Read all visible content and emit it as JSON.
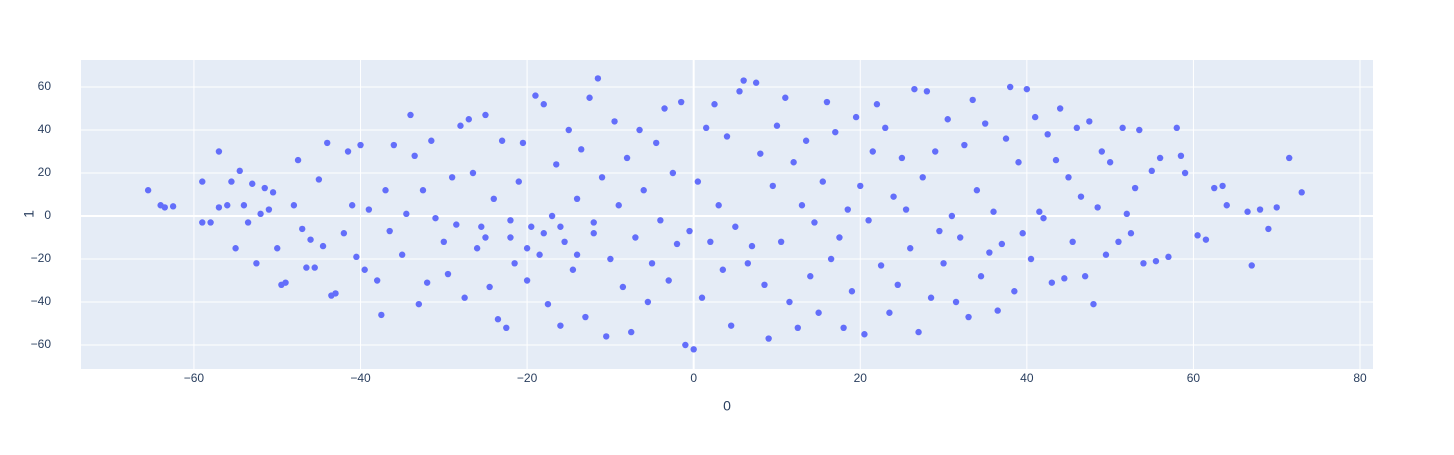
{
  "chart_data": {
    "type": "scatter",
    "x_label": "0",
    "y_label": "1",
    "color": "#636efa",
    "grid": true,
    "zeroline": true,
    "xlim": [
      -73.56,
      81.56
    ],
    "ylim": [
      -71.16,
      72.56
    ],
    "xticks": [
      {
        "value": -60,
        "label": "−60"
      },
      {
        "value": -40,
        "label": "−40"
      },
      {
        "value": -20,
        "label": "−20"
      },
      0,
      20,
      40,
      60,
      80
    ],
    "yticks": [
      {
        "value": -60,
        "label": "−60"
      },
      {
        "value": -40,
        "label": "−40"
      },
      {
        "value": -20,
        "label": "−20"
      },
      0,
      20,
      40,
      60
    ],
    "x": [
      -65.5,
      -64,
      -63.5,
      -62.5,
      -59,
      -59,
      -58,
      -57,
      -57,
      -56,
      -55.5,
      -55,
      -54.5,
      -54,
      -53.5,
      -53,
      -52.5,
      -52,
      -51.5,
      -51,
      -50.5,
      -50,
      -49.5,
      -49,
      -48,
      -47.5,
      -47,
      -46.5,
      -46,
      -45.5,
      -45,
      -44.5,
      -44,
      -43.5,
      -43,
      -42,
      -41.5,
      -41,
      -40.5,
      -40,
      -39.5,
      -39,
      -38,
      -37.5,
      -37,
      -36.5,
      -36,
      -35,
      -34.5,
      -34,
      -33.5,
      -33,
      -32.5,
      -32,
      -31.5,
      -31,
      -30,
      -29.5,
      -29,
      -28.5,
      -28,
      -27.5,
      -27,
      -26.5,
      -26,
      -25.5,
      -25,
      -24.5,
      -24,
      -23.5,
      -23,
      -22.5,
      -22,
      -21.5,
      -21,
      -20.5,
      -20,
      -19.5,
      -19,
      -18.5,
      -18,
      -17.5,
      -17,
      -16.5,
      -16,
      -15.5,
      -15,
      -14.5,
      -14,
      -13.5,
      -13,
      -12.5,
      -12,
      -11.5,
      -11,
      -10.5,
      -10,
      -9.5,
      -9,
      -8.5,
      -8,
      -7.5,
      -7,
      -6.5,
      -6,
      -5.5,
      -5,
      -4.5,
      -4,
      -3.5,
      -3,
      -2.5,
      -2,
      -1.5,
      -1,
      -0.5,
      0,
      0.5,
      1,
      1.5,
      2,
      2.5,
      3,
      3.5,
      4,
      4.5,
      5,
      5.5,
      6,
      6.5,
      7,
      7.5,
      8,
      8.5,
      9,
      9.5,
      10,
      10.5,
      11,
      11.5,
      12,
      12.5,
      13,
      13.5,
      14,
      14.5,
      15,
      15.5,
      16,
      16.5,
      17,
      17.5,
      18,
      18.5,
      19,
      19.5,
      20,
      20.5,
      21,
      21.5,
      22,
      22.5,
      23,
      23.5,
      24,
      24.5,
      25,
      25.5,
      26,
      26.5,
      27,
      27.5,
      28,
      28.5,
      29,
      29.5,
      30,
      30.5,
      31,
      31.5,
      32,
      32.5,
      33,
      33.5,
      34,
      34.5,
      35,
      35.5,
      36,
      36.5,
      37,
      37.5,
      38,
      38.5,
      39,
      39.5,
      40,
      40.5,
      41,
      41.5,
      42,
      42.5,
      43,
      43.5,
      44,
      44.5,
      45,
      45.5,
      46,
      46.5,
      47,
      47.5,
      48,
      48.5,
      49,
      49.5,
      50,
      51,
      51.5,
      52,
      52.5,
      53,
      53.5,
      54,
      55,
      55.5,
      56,
      57,
      58,
      58.5,
      59,
      60.5,
      61.5,
      62.5,
      63.5,
      64,
      66.5,
      67,
      68,
      69,
      70,
      71.5,
      73,
      -18,
      -20,
      -16,
      -22,
      -14,
      -12,
      -25
    ],
    "y": [
      12,
      5,
      4,
      4.5,
      16,
      -3,
      -3,
      30,
      4,
      5,
      16,
      -15,
      21,
      5,
      -3,
      15,
      -22,
      1,
      13,
      3,
      11,
      -15,
      -32,
      -31,
      5,
      26,
      -6,
      -24,
      -11,
      -24,
      17,
      -14,
      34,
      -37,
      -36,
      -8,
      30,
      5,
      -19,
      33,
      -25,
      3,
      -30,
      -46,
      12,
      -7,
      33,
      -18,
      1,
      47,
      28,
      -41,
      12,
      -31,
      35,
      -1,
      -12,
      -27,
      18,
      -4,
      42,
      -38,
      45,
      20,
      -15,
      -5,
      47,
      -33,
      8,
      -48,
      35,
      -52,
      -10,
      -22,
      16,
      34,
      -30,
      -5,
      56,
      -18,
      52,
      -41,
      0,
      24,
      -51,
      -12,
      40,
      -25,
      8,
      31,
      -47,
      55,
      -3,
      64,
      18,
      -56,
      -20,
      44,
      5,
      -33,
      27,
      -54,
      -10,
      40,
      12,
      -40,
      -22,
      34,
      -2,
      50,
      -30,
      20,
      -13,
      53,
      -60,
      -7,
      -62,
      16,
      -38,
      41,
      -12,
      52,
      5,
      -25,
      37,
      -51,
      -5,
      58,
      63,
      -22,
      -14,
      62,
      29,
      -32,
      -57,
      14,
      42,
      -12,
      55,
      -40,
      25,
      -52,
      5,
      35,
      -28,
      -3,
      -45,
      16,
      53,
      -20,
      39,
      -10,
      -52,
      3,
      -35,
      46,
      14,
      -55,
      -2,
      30,
      52,
      -23,
      41,
      -45,
      9,
      -32,
      27,
      3,
      -15,
      59,
      -54,
      18,
      58,
      -38,
      30,
      -7,
      -22,
      45,
      0,
      -40,
      -10,
      33,
      -47,
      54,
      12,
      -28,
      43,
      -17,
      2,
      -44,
      -13,
      36,
      60,
      -35,
      25,
      -8,
      59,
      -20,
      46,
      2,
      -1,
      38,
      -31,
      26,
      50,
      -29,
      18,
      -12,
      41,
      9,
      -28,
      44,
      -41,
      4,
      30,
      -18,
      25,
      -12,
      41,
      1,
      -8,
      13,
      40,
      -22,
      21,
      -21,
      27,
      -19,
      41,
      28,
      20,
      -9,
      -11,
      13,
      14,
      5,
      2,
      -23,
      3,
      -6,
      4,
      27,
      11,
      -8,
      -15,
      -5,
      -2,
      -18,
      -8,
      -10
    ]
  }
}
